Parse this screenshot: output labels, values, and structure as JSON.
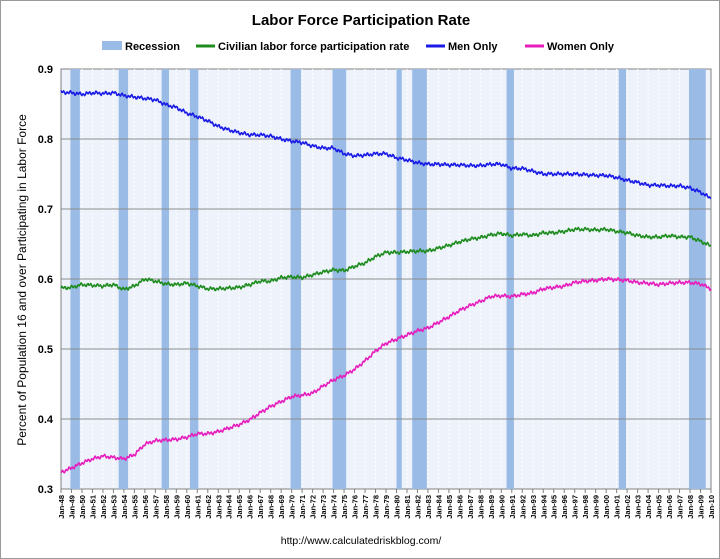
{
  "chart_data": {
    "type": "line",
    "title": "Labor Force Participation Rate",
    "ylabel": "Percent of Population 16 and over Participating in Labor Force",
    "source": "http://www.calculatedriskblog.com/",
    "ylim": [
      0.3,
      0.9
    ],
    "yticks": [
      "0.3",
      "0.4",
      "0.5",
      "0.6",
      "0.7",
      "0.8",
      "0.9"
    ],
    "xlim": [
      1948.0,
      2010.0
    ],
    "xtick_labels": [
      "Jan-48",
      "Jan-49",
      "Jan-50",
      "Jan-51",
      "Jan-52",
      "Jan-53",
      "Jan-54",
      "Jan-55",
      "Jan-56",
      "Jan-57",
      "Jan-58",
      "Jan-59",
      "Jan-60",
      "Jan-61",
      "Jan-62",
      "Jan-63",
      "Jan-64",
      "Jan-65",
      "Jan-66",
      "Jan-67",
      "Jan-68",
      "Jan-69",
      "Jan-70",
      "Jan-71",
      "Jan-72",
      "Jan-73",
      "Jan-74",
      "Jan-75",
      "Jan-76",
      "Jan-77",
      "Jan-78",
      "Jan-79",
      "Jan-80",
      "Jan-81",
      "Jan-82",
      "Jan-83",
      "Jan-84",
      "Jan-85",
      "Jan-86",
      "Jan-87",
      "Jan-88",
      "Jan-89",
      "Jan-90",
      "Jan-91",
      "Jan-92",
      "Jan-93",
      "Jan-94",
      "Jan-95",
      "Jan-96",
      "Jan-97",
      "Jan-98",
      "Jan-99",
      "Jan-00",
      "Jan-01",
      "Jan-02",
      "Jan-03",
      "Jan-04",
      "Jan-05",
      "Jan-06",
      "Jan-07",
      "Jan-08",
      "Jan-09",
      "Jan-10"
    ],
    "grid": true,
    "legend_position": "top",
    "recession_color": "#99bbe6",
    "recessions": [
      [
        1948.9,
        1949.8
      ],
      [
        1953.5,
        1954.4
      ],
      [
        1957.6,
        1958.3
      ],
      [
        1960.3,
        1961.1
      ],
      [
        1969.9,
        1970.9
      ],
      [
        1973.9,
        1975.2
      ],
      [
        1980.0,
        1980.5
      ],
      [
        1981.5,
        1982.9
      ],
      [
        1990.5,
        1991.2
      ],
      [
        2001.2,
        2001.9
      ],
      [
        2007.9,
        2009.5
      ]
    ],
    "legend": {
      "recession": "Recession",
      "civilian": "Civilian labor force participation rate",
      "men": "Men Only",
      "women": "Women Only"
    },
    "series": [
      {
        "name": "Civilian labor force participation rate",
        "key": "civilian",
        "color": "#1e8c1e",
        "x": [
          1948,
          1949,
          1950,
          1951,
          1952,
          1953,
          1954,
          1955,
          1956,
          1957,
          1958,
          1959,
          1960,
          1961,
          1962,
          1963,
          1964,
          1965,
          1966,
          1967,
          1968,
          1969,
          1970,
          1971,
          1972,
          1973,
          1974,
          1975,
          1976,
          1977,
          1978,
          1979,
          1980,
          1981,
          1982,
          1983,
          1984,
          1985,
          1986,
          1987,
          1988,
          1989,
          1990,
          1991,
          1992,
          1993,
          1994,
          1995,
          1996,
          1997,
          1998,
          1999,
          2000,
          2001,
          2002,
          2003,
          2004,
          2005,
          2006,
          2007,
          2008,
          2009,
          2010
        ],
        "values": [
          0.587,
          0.588,
          0.592,
          0.591,
          0.59,
          0.592,
          0.585,
          0.59,
          0.6,
          0.597,
          0.593,
          0.592,
          0.594,
          0.59,
          0.586,
          0.586,
          0.587,
          0.588,
          0.592,
          0.597,
          0.597,
          0.602,
          0.603,
          0.602,
          0.606,
          0.61,
          0.613,
          0.612,
          0.618,
          0.623,
          0.632,
          0.638,
          0.638,
          0.639,
          0.64,
          0.64,
          0.644,
          0.648,
          0.653,
          0.657,
          0.659,
          0.663,
          0.665,
          0.662,
          0.664,
          0.662,
          0.666,
          0.666,
          0.668,
          0.671,
          0.671,
          0.67,
          0.671,
          0.668,
          0.666,
          0.662,
          0.66,
          0.66,
          0.662,
          0.66,
          0.66,
          0.654,
          0.647
        ]
      },
      {
        "name": "Men Only",
        "key": "men",
        "color": "#1a1ae6",
        "x": [
          1948,
          1949,
          1950,
          1951,
          1952,
          1953,
          1954,
          1955,
          1956,
          1957,
          1958,
          1959,
          1960,
          1961,
          1962,
          1963,
          1964,
          1965,
          1966,
          1967,
          1968,
          1969,
          1970,
          1971,
          1972,
          1973,
          1974,
          1975,
          1976,
          1977,
          1978,
          1979,
          1980,
          1981,
          1982,
          1983,
          1984,
          1985,
          1986,
          1987,
          1988,
          1989,
          1990,
          1991,
          1992,
          1993,
          1994,
          1995,
          1996,
          1997,
          1998,
          1999,
          2000,
          2001,
          2002,
          2003,
          2004,
          2005,
          2006,
          2007,
          2008,
          2009,
          2010
        ],
        "values": [
          0.867,
          0.866,
          0.864,
          0.866,
          0.865,
          0.866,
          0.862,
          0.86,
          0.858,
          0.856,
          0.849,
          0.845,
          0.837,
          0.832,
          0.826,
          0.818,
          0.813,
          0.809,
          0.806,
          0.806,
          0.804,
          0.8,
          0.797,
          0.795,
          0.79,
          0.787,
          0.787,
          0.779,
          0.776,
          0.777,
          0.779,
          0.779,
          0.773,
          0.77,
          0.766,
          0.764,
          0.764,
          0.763,
          0.763,
          0.762,
          0.762,
          0.764,
          0.764,
          0.758,
          0.758,
          0.754,
          0.75,
          0.75,
          0.75,
          0.75,
          0.749,
          0.748,
          0.748,
          0.745,
          0.741,
          0.738,
          0.734,
          0.734,
          0.733,
          0.733,
          0.73,
          0.724,
          0.715
        ]
      },
      {
        "name": "Women Only",
        "key": "women",
        "color": "#e61ebe",
        "x": [
          1948,
          1949,
          1950,
          1951,
          1952,
          1953,
          1954,
          1955,
          1956,
          1957,
          1958,
          1959,
          1960,
          1961,
          1962,
          1963,
          1964,
          1965,
          1966,
          1967,
          1968,
          1969,
          1970,
          1971,
          1972,
          1973,
          1974,
          1975,
          1976,
          1977,
          1978,
          1979,
          1980,
          1981,
          1982,
          1983,
          1984,
          1985,
          1986,
          1987,
          1988,
          1989,
          1990,
          1991,
          1992,
          1993,
          1994,
          1995,
          1996,
          1997,
          1998,
          1999,
          2000,
          2001,
          2002,
          2003,
          2004,
          2005,
          2006,
          2007,
          2008,
          2009,
          2010
        ],
        "values": [
          0.324,
          0.33,
          0.337,
          0.343,
          0.347,
          0.345,
          0.343,
          0.349,
          0.364,
          0.369,
          0.37,
          0.371,
          0.374,
          0.379,
          0.379,
          0.382,
          0.387,
          0.392,
          0.399,
          0.409,
          0.418,
          0.425,
          0.432,
          0.434,
          0.437,
          0.447,
          0.456,
          0.462,
          0.471,
          0.483,
          0.497,
          0.508,
          0.514,
          0.52,
          0.526,
          0.53,
          0.538,
          0.546,
          0.555,
          0.562,
          0.568,
          0.575,
          0.576,
          0.575,
          0.578,
          0.58,
          0.586,
          0.588,
          0.59,
          0.595,
          0.597,
          0.598,
          0.6,
          0.599,
          0.598,
          0.595,
          0.594,
          0.592,
          0.594,
          0.595,
          0.595,
          0.593,
          0.586
        ]
      }
    ]
  }
}
